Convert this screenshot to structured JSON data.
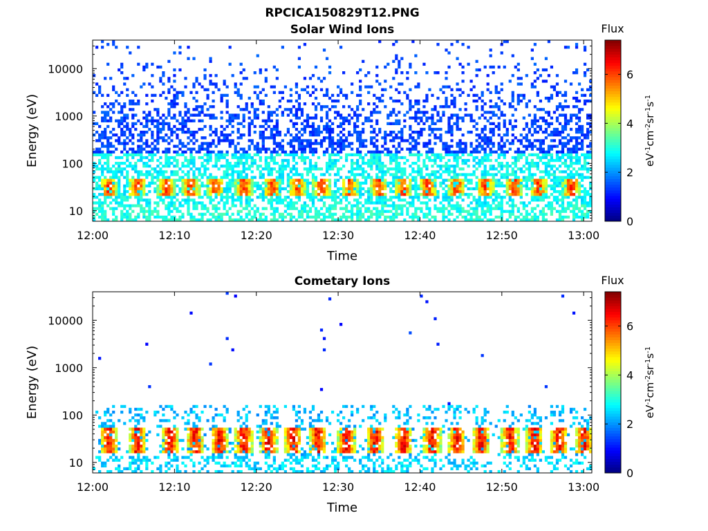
{
  "figure_title": "RPCICA150829T12.PNG",
  "colormap": [
    "#00007f",
    "#0000ff",
    "#007fff",
    "#00ffff",
    "#7fff7f",
    "#ffff00",
    "#ff7f00",
    "#ff0000",
    "#7f0000"
  ],
  "chart_data": [
    {
      "type": "heatmap",
      "title": "Solar Wind Ions",
      "xlabel": "Time",
      "ylabel": "Energy (eV)",
      "x_ticks": [
        "12:00",
        "12:10",
        "12:20",
        "12:30",
        "12:40",
        "12:50",
        "13:00"
      ],
      "x_tick_minutes": [
        0,
        10,
        20,
        30,
        40,
        50,
        60
      ],
      "xlim_minutes": [
        0,
        61
      ],
      "y_scale": "log",
      "y_ticks": [
        "10",
        "100",
        "1000",
        "10000"
      ],
      "y_tick_values": [
        10,
        100,
        1000,
        10000
      ],
      "ylim": [
        6,
        40000
      ],
      "colorbar": {
        "title": "Flux",
        "label": "eV-1cm-2sr-1s-1",
        "ticks": [
          "0",
          "2",
          "4",
          "6"
        ],
        "tick_values": [
          0,
          2,
          4,
          6
        ],
        "range": [
          0,
          7.4
        ]
      },
      "data_summary": {
        "peak_band_energy_eV": [
          25,
          40
        ],
        "peak_band_flux": 6.5,
        "peak_burst_minutes": [
          2,
          5.5,
          9,
          12,
          15,
          18.5,
          22,
          25,
          28,
          31.5,
          35,
          38,
          41,
          44.5,
          48,
          51.5,
          54.5,
          58.5
        ],
        "background_flux_low_energy": 3,
        "background_flux_high_energy": 1.4,
        "background_density": "dense"
      }
    },
    {
      "type": "heatmap",
      "title": "Cometary Ions",
      "xlabel": "Time",
      "ylabel": "Energy (eV)",
      "x_ticks": [
        "12:00",
        "12:10",
        "12:20",
        "12:30",
        "12:40",
        "12:50",
        "13:00"
      ],
      "x_tick_minutes": [
        0,
        10,
        20,
        30,
        40,
        50,
        60
      ],
      "xlim_minutes": [
        0,
        61
      ],
      "y_scale": "log",
      "y_ticks": [
        "10",
        "100",
        "1000",
        "10000"
      ],
      "y_tick_values": [
        10,
        100,
        1000,
        10000
      ],
      "ylim": [
        6,
        40000
      ],
      "colorbar": {
        "title": "Flux",
        "label": "eV-1cm-2sr-1s-1",
        "ticks": [
          "0",
          "2",
          "4",
          "6"
        ],
        "tick_values": [
          0,
          2,
          4,
          6
        ],
        "range": [
          0,
          7.4
        ]
      },
      "data_summary": {
        "peak_band_energy_eV": [
          20,
          45
        ],
        "peak_band_flux": 7.0,
        "peak_burst_minutes": [
          2,
          5.5,
          9.5,
          12.5,
          15.5,
          18.5,
          21.5,
          24.5,
          27.5,
          31,
          34.5,
          38,
          41.5,
          44.5,
          47.5,
          51,
          54,
          57,
          60
        ],
        "background_flux_low_energy": 2.5,
        "background_flux_high_energy": 1.2,
        "background_density": "sparse"
      }
    }
  ]
}
